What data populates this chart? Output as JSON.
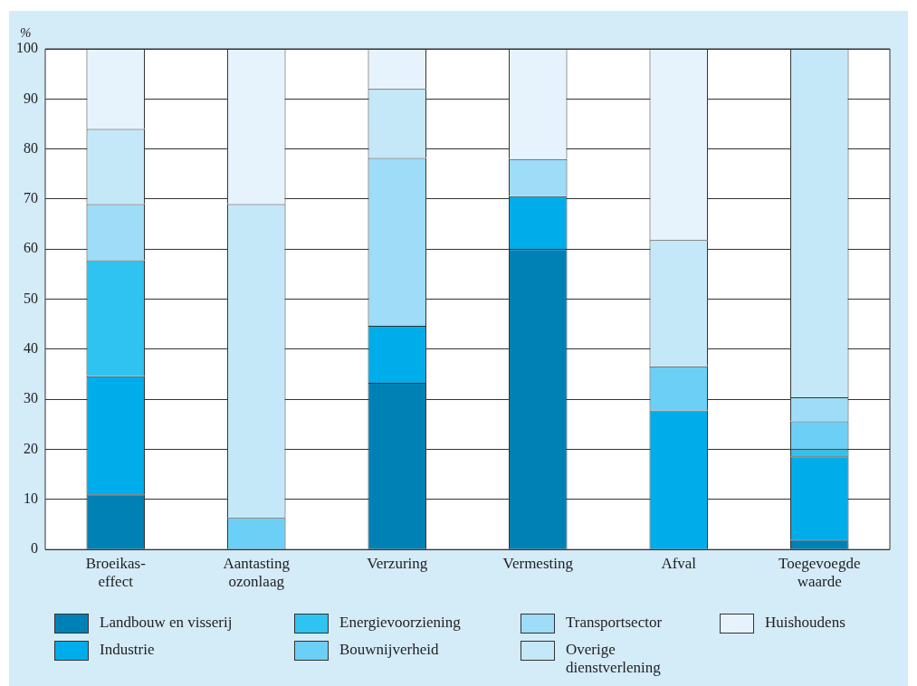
{
  "chart_data": {
    "type": "bar",
    "stacked": true,
    "ylabel": "%",
    "categories": [
      "Broeikas-\neffect",
      "Aantasting\nozonlaag",
      "Verzuring",
      "Vermesting",
      "Afval",
      "Toegevoegde\nwaarde"
    ],
    "series": [
      {
        "name": "Landbouw en visserij",
        "color": "#0081b5",
        "values": [
          11,
          0,
          33.3,
          60,
          0,
          2
        ]
      },
      {
        "name": "Industrie",
        "color": "#00adeb",
        "values": [
          23.6,
          0,
          11.4,
          10.6,
          27.8,
          16.6
        ]
      },
      {
        "name": "Energievoorziening",
        "color": "#2ec3f0",
        "values": [
          23.2,
          0,
          0,
          0,
          0,
          1.4
        ]
      },
      {
        "name": "Bouwnijverheid",
        "color": "#6ccff5",
        "values": [
          0,
          6.3,
          0,
          0,
          8.8,
          5.6
        ]
      },
      {
        "name": "Transportsector",
        "color": "#9edcf7",
        "values": [
          11.2,
          0,
          33.5,
          7.4,
          0,
          4.8
        ]
      },
      {
        "name": "Overige dienstverlening",
        "color": "#c5e8f8",
        "values": [
          15,
          62.7,
          13.8,
          0,
          25.2,
          69.6
        ]
      },
      {
        "name": "Huishoudens",
        "color": "#e6f3fc",
        "values": [
          16,
          31,
          8,
          22,
          38.2,
          0
        ]
      }
    ],
    "ylim": [
      0,
      100
    ],
    "yticks": [
      0,
      10,
      20,
      30,
      40,
      50,
      60,
      70,
      80,
      90,
      100
    ],
    "grid": "y",
    "legend": "bottom"
  }
}
